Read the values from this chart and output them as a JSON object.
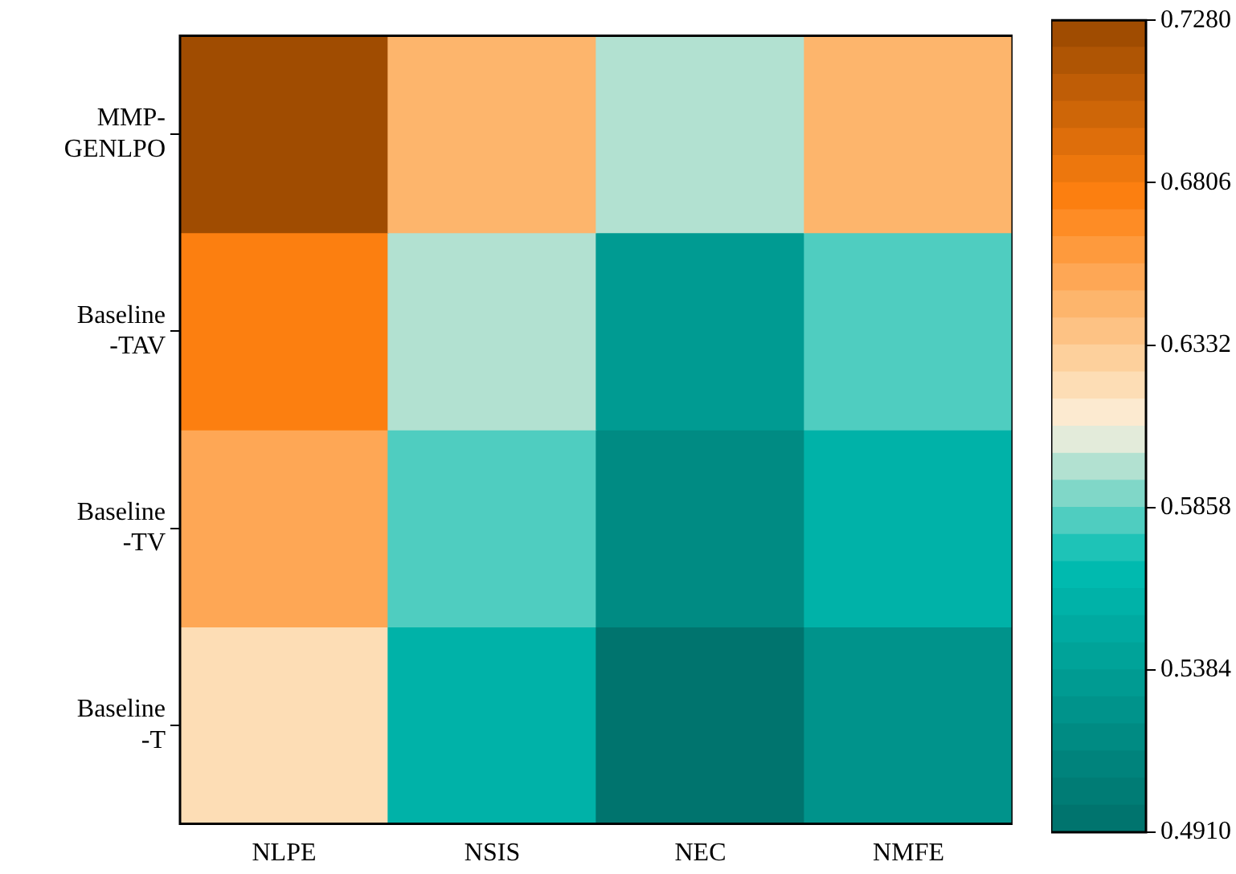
{
  "chart_data": {
    "type": "heatmap",
    "categories": [
      "NLPE",
      "NSIS",
      "NEC",
      "NMFE"
    ],
    "y_categories": [
      "MMP-\nGENLPO",
      "Baseline\n-TAV",
      "Baseline\n-TV",
      "Baseline\n-T"
    ],
    "cells": [
      [
        0.725,
        0.645,
        0.6,
        0.645
      ],
      [
        0.675,
        0.6,
        0.535,
        0.58
      ],
      [
        0.655,
        0.58,
        0.52,
        0.555
      ],
      [
        0.625,
        0.555,
        0.493,
        0.525
      ]
    ],
    "clim": [
      0.491,
      0.728
    ],
    "cticks": [
      {
        "value": 0.491,
        "label": "0.4910"
      },
      {
        "value": 0.5384,
        "label": "0.5384"
      },
      {
        "value": 0.5858,
        "label": "0.5858"
      },
      {
        "value": 0.6332,
        "label": "0.6332"
      },
      {
        "value": 0.6806,
        "label": "0.6806"
      },
      {
        "value": 0.728,
        "label": "0.7280"
      }
    ]
  }
}
